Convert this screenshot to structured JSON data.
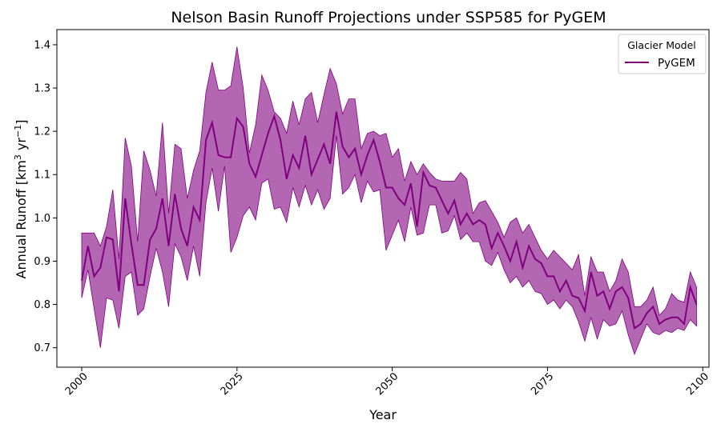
{
  "chart_data": {
    "type": "line",
    "title": "Nelson Basin Runoff Projections under SSP585 for PyGEM",
    "xlabel": "Year",
    "ylabel": {
      "prefix": "Annual Runoff [km",
      "exp1": "3",
      "middle": " yr",
      "exp2": "−1",
      "suffix": "]"
    },
    "xlim": [
      1996,
      2101
    ],
    "ylim": [
      0.655,
      1.435
    ],
    "xticks": [
      2000,
      2025,
      2050,
      2075,
      2100
    ],
    "yticks": [
      0.7,
      0.8,
      0.9,
      1.0,
      1.1,
      1.2,
      1.3,
      1.4
    ],
    "grid": false,
    "legend": {
      "title": "Glacier Model",
      "placement": "top-right"
    },
    "colors": {
      "line": "#800080",
      "band": "#a64ca6"
    },
    "series": [
      {
        "name": "PyGEM",
        "x": [
          2000,
          2001,
          2002,
          2003,
          2004,
          2005,
          2006,
          2007,
          2008,
          2009,
          2010,
          2011,
          2012,
          2013,
          2014,
          2015,
          2016,
          2017,
          2018,
          2019,
          2020,
          2021,
          2022,
          2023,
          2024,
          2025,
          2026,
          2027,
          2028,
          2029,
          2030,
          2031,
          2032,
          2033,
          2034,
          2035,
          2036,
          2037,
          2038,
          2039,
          2040,
          2041,
          2042,
          2043,
          2044,
          2045,
          2046,
          2047,
          2048,
          2049,
          2050,
          2051,
          2052,
          2053,
          2054,
          2055,
          2056,
          2057,
          2058,
          2059,
          2060,
          2061,
          2062,
          2063,
          2064,
          2065,
          2066,
          2067,
          2068,
          2069,
          2070,
          2071,
          2072,
          2073,
          2074,
          2075,
          2076,
          2077,
          2078,
          2079,
          2080,
          2081,
          2082,
          2083,
          2084,
          2085,
          2086,
          2087,
          2088,
          2089,
          2090,
          2091,
          2092,
          2093,
          2094,
          2095,
          2096,
          2097,
          2098,
          2099
        ],
        "y": [
          0.855,
          0.935,
          0.865,
          0.885,
          0.955,
          0.95,
          0.83,
          1.045,
          0.94,
          0.845,
          0.845,
          0.95,
          0.975,
          1.045,
          0.935,
          1.055,
          0.975,
          0.935,
          1.025,
          0.995,
          1.18,
          1.22,
          1.145,
          1.14,
          1.14,
          1.23,
          1.21,
          1.125,
          1.095,
          1.145,
          1.195,
          1.235,
          1.18,
          1.09,
          1.145,
          1.115,
          1.19,
          1.1,
          1.135,
          1.17,
          1.125,
          1.245,
          1.165,
          1.14,
          1.16,
          1.1,
          1.145,
          1.18,
          1.13,
          1.07,
          1.07,
          1.045,
          1.03,
          1.08,
          0.98,
          1.105,
          1.075,
          1.07,
          1.04,
          1.01,
          1.04,
          0.985,
          1.01,
          0.985,
          0.995,
          0.985,
          0.93,
          0.965,
          0.935,
          0.9,
          0.945,
          0.885,
          0.935,
          0.905,
          0.895,
          0.865,
          0.865,
          0.83,
          0.855,
          0.82,
          0.815,
          0.785,
          0.875,
          0.82,
          0.83,
          0.79,
          0.83,
          0.84,
          0.815,
          0.745,
          0.755,
          0.78,
          0.795,
          0.755,
          0.765,
          0.77,
          0.77,
          0.755,
          0.84,
          0.8
        ],
        "lower": [
          0.815,
          0.88,
          0.79,
          0.7,
          0.815,
          0.81,
          0.745,
          0.865,
          0.875,
          0.775,
          0.79,
          0.865,
          0.93,
          0.875,
          0.795,
          0.94,
          0.91,
          0.855,
          0.935,
          0.865,
          1.035,
          1.115,
          1.015,
          1.12,
          0.92,
          0.955,
          1.005,
          1.025,
          0.995,
          1.08,
          1.09,
          1.02,
          1.025,
          0.99,
          1.07,
          1.025,
          1.075,
          1.03,
          1.065,
          1.02,
          1.045,
          1.19,
          1.055,
          1.07,
          1.1,
          1.035,
          1.085,
          1.06,
          1.065,
          0.925,
          0.96,
          0.995,
          0.945,
          1.025,
          0.96,
          0.965,
          1.03,
          1.03,
          0.965,
          0.97,
          1.005,
          0.95,
          0.965,
          0.945,
          0.945,
          0.9,
          0.89,
          0.92,
          0.88,
          0.85,
          0.865,
          0.84,
          0.855,
          0.83,
          0.825,
          0.8,
          0.81,
          0.79,
          0.81,
          0.795,
          0.76,
          0.715,
          0.77,
          0.72,
          0.765,
          0.75,
          0.755,
          0.785,
          0.73,
          0.685,
          0.72,
          0.755,
          0.735,
          0.73,
          0.74,
          0.735,
          0.745,
          0.74,
          0.765,
          0.75
        ],
        "upper": [
          0.965,
          0.965,
          0.965,
          0.935,
          0.98,
          1.065,
          0.905,
          1.185,
          1.12,
          0.945,
          1.155,
          1.11,
          1.05,
          1.22,
          1.01,
          1.17,
          1.16,
          1.045,
          1.11,
          1.155,
          1.29,
          1.36,
          1.295,
          1.295,
          1.305,
          1.395,
          1.3,
          1.15,
          1.215,
          1.33,
          1.295,
          1.245,
          1.23,
          1.195,
          1.27,
          1.215,
          1.275,
          1.29,
          1.22,
          1.285,
          1.345,
          1.31,
          1.24,
          1.275,
          1.275,
          1.16,
          1.195,
          1.2,
          1.19,
          1.195,
          1.14,
          1.16,
          1.085,
          1.13,
          1.1,
          1.125,
          1.105,
          1.09,
          1.085,
          1.085,
          1.085,
          1.105,
          1.09,
          1.01,
          1.035,
          1.04,
          1.015,
          0.99,
          0.955,
          0.99,
          1.0,
          0.965,
          0.985,
          0.955,
          0.925,
          0.905,
          0.925,
          0.91,
          0.895,
          0.88,
          0.915,
          0.82,
          0.91,
          0.875,
          0.875,
          0.83,
          0.855,
          0.905,
          0.875,
          0.795,
          0.795,
          0.81,
          0.84,
          0.775,
          0.79,
          0.825,
          0.81,
          0.805,
          0.875,
          0.84
        ]
      }
    ]
  }
}
